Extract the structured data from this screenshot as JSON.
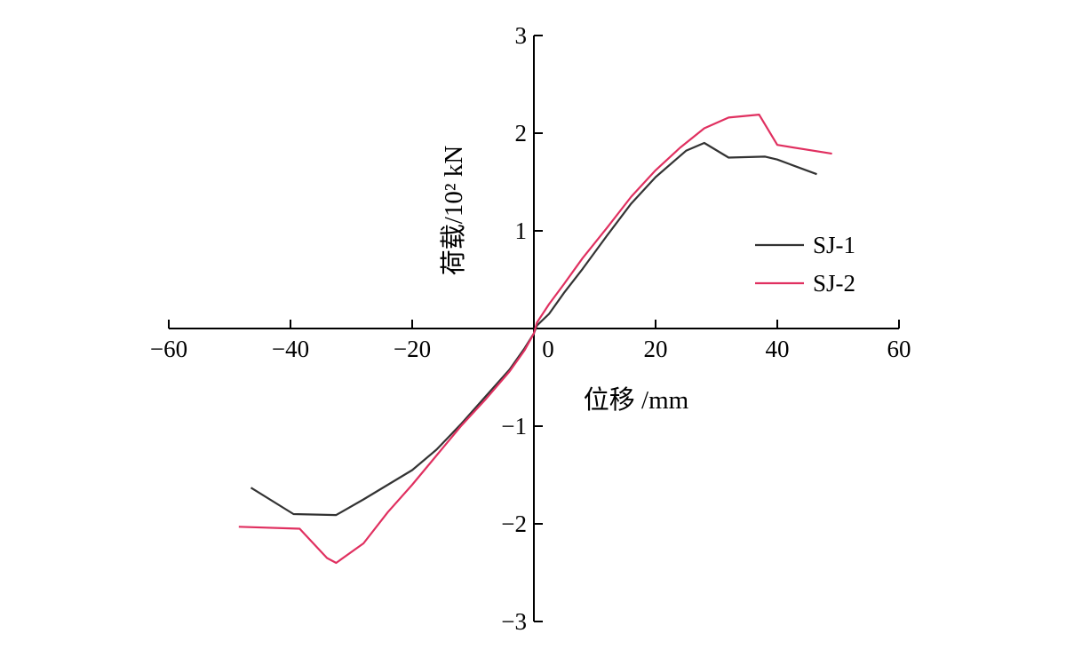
{
  "chart_data": {
    "type": "line",
    "xlabel": "位移 /mm",
    "ylabel": "荷载/10² kN",
    "xlim": [
      -60,
      60
    ],
    "ylim": [
      -3,
      3
    ],
    "x_ticks": [
      "−60",
      "−40",
      "−20",
      "0",
      "20",
      "40",
      "60"
    ],
    "y_ticks": [
      "3",
      "2",
      "1",
      "−1",
      "−2",
      "−3"
    ],
    "grid": false,
    "legend_position": "right",
    "series": [
      {
        "name": "SJ-1",
        "color": "#333333",
        "points": [
          [
            -46.5,
            -1.63
          ],
          [
            -39.5,
            -1.9
          ],
          [
            -32.5,
            -1.91
          ],
          [
            -28.0,
            -1.75
          ],
          [
            -20.0,
            -1.45
          ],
          [
            -16.0,
            -1.24
          ],
          [
            -12.0,
            -0.98
          ],
          [
            -8.0,
            -0.7
          ],
          [
            -4.0,
            -0.42
          ],
          [
            -1.5,
            -0.2
          ],
          [
            0.0,
            -0.05
          ],
          [
            0.5,
            0.03
          ],
          [
            2.5,
            0.15
          ],
          [
            5.0,
            0.37
          ],
          [
            8.0,
            0.61
          ],
          [
            12.0,
            0.95
          ],
          [
            16.0,
            1.28
          ],
          [
            20.0,
            1.55
          ],
          [
            25.0,
            1.82
          ],
          [
            28.0,
            1.9
          ],
          [
            32.0,
            1.75
          ],
          [
            38.0,
            1.76
          ],
          [
            40.0,
            1.73
          ],
          [
            46.5,
            1.58
          ]
        ]
      },
      {
        "name": "SJ-2",
        "color": "#e03060",
        "points": [
          [
            -48.5,
            -2.03
          ],
          [
            -38.5,
            -2.05
          ],
          [
            -34.0,
            -2.35
          ],
          [
            -32.5,
            -2.4
          ],
          [
            -28.0,
            -2.2
          ],
          [
            -24.0,
            -1.88
          ],
          [
            -20.0,
            -1.6
          ],
          [
            -16.0,
            -1.3
          ],
          [
            -12.0,
            -1.0
          ],
          [
            -8.0,
            -0.73
          ],
          [
            -4.0,
            -0.44
          ],
          [
            -1.5,
            -0.22
          ],
          [
            0.0,
            -0.05
          ],
          [
            0.5,
            0.06
          ],
          [
            2.5,
            0.25
          ],
          [
            5.0,
            0.46
          ],
          [
            8.0,
            0.72
          ],
          [
            12.0,
            1.03
          ],
          [
            16.0,
            1.35
          ],
          [
            20.0,
            1.62
          ],
          [
            24.0,
            1.85
          ],
          [
            28.0,
            2.05
          ],
          [
            32.0,
            2.16
          ],
          [
            37.0,
            2.19
          ],
          [
            40.0,
            1.88
          ],
          [
            49.0,
            1.79
          ]
        ]
      }
    ]
  }
}
